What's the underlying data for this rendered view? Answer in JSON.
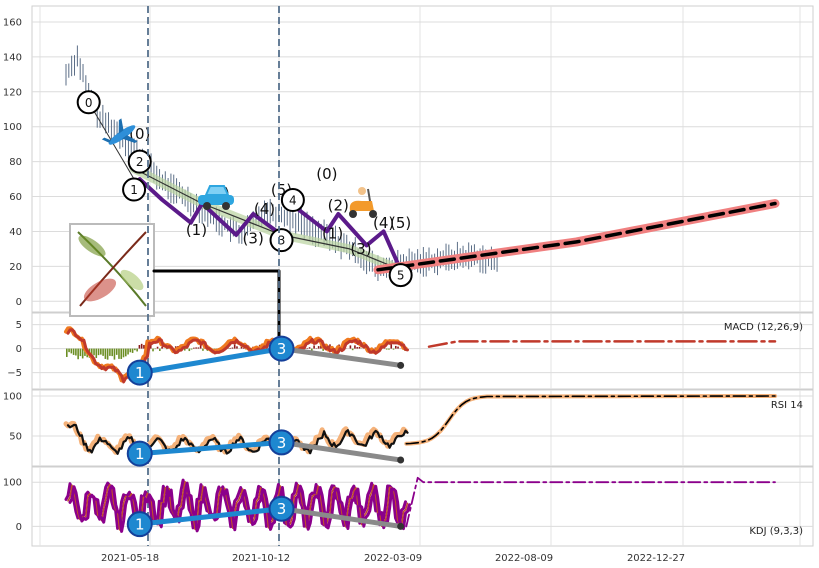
{
  "chart_data": [
    {
      "type": "line",
      "panel": "price",
      "ylim": [
        -5,
        168
      ],
      "y_ticks": [
        "0",
        "20",
        "40",
        "60",
        "80",
        "100",
        "120",
        "140",
        "160"
      ],
      "y_tick_values": [
        0,
        20,
        40,
        60,
        80,
        100,
        120,
        140,
        160
      ],
      "x_ticks": [
        "2021-05-18",
        "2021-10-12",
        "2022-03-09",
        "2022-08-09",
        "2022-12-27"
      ],
      "price_path": [
        [
          0,
          130
        ],
        [
          2,
          140
        ],
        [
          4,
          118
        ],
        [
          6,
          105
        ],
        [
          8,
          100
        ],
        [
          11,
          90
        ],
        [
          14,
          80
        ],
        [
          17,
          68
        ],
        [
          20,
          62
        ],
        [
          23,
          55
        ],
        [
          26,
          48
        ],
        [
          29,
          42
        ],
        [
          31,
          38
        ],
        [
          33,
          45
        ],
        [
          35,
          52
        ],
        [
          38,
          50
        ],
        [
          41,
          46
        ],
        [
          44,
          40
        ],
        [
          47,
          36
        ],
        [
          50,
          30
        ],
        [
          53,
          24
        ],
        [
          55,
          18
        ],
        [
          57,
          20
        ],
        [
          60,
          22
        ],
        [
          64,
          23
        ],
        [
          68,
          25
        ],
        [
          72,
          26
        ],
        [
          74,
          24
        ],
        [
          76,
          22
        ]
      ],
      "projection_line": [
        [
          55,
          18
        ],
        [
          90,
          34
        ],
        [
          125,
          56
        ]
      ],
      "wave_labels": [
        {
          "text": "0",
          "x": 4,
          "y": 114,
          "circled": true
        },
        {
          "text": "(0)",
          "x": 13,
          "y": 93,
          "circled": false
        },
        {
          "text": "2",
          "x": 13,
          "y": 80,
          "circled": true
        },
        {
          "text": "1",
          "x": 12,
          "y": 64,
          "circled": true
        },
        {
          "text": "(1)",
          "x": 23,
          "y": 38,
          "circled": false
        },
        {
          "text": "(2)",
          "x": 27,
          "y": 59,
          "circled": false
        },
        {
          "text": "(3)",
          "x": 33,
          "y": 33,
          "circled": false
        },
        {
          "text": "(4)",
          "x": 35,
          "y": 50,
          "circled": false
        },
        {
          "text": "3",
          "x": 38,
          "y": 35,
          "circled": true
        },
        {
          "text": "(5)",
          "x": 38,
          "y": 61,
          "circled": false
        },
        {
          "text": "4",
          "x": 40,
          "y": 58,
          "circled": true
        },
        {
          "text": "(0)",
          "x": 46,
          "y": 70,
          "circled": false
        },
        {
          "text": "(1)",
          "x": 47,
          "y": 36,
          "circled": false
        },
        {
          "text": "(2)",
          "x": 48,
          "y": 52,
          "circled": false
        },
        {
          "text": "(3)",
          "x": 52,
          "y": 27,
          "circled": false
        },
        {
          "text": "(4)",
          "x": 56,
          "y": 42,
          "circled": false
        },
        {
          "text": "(5)",
          "x": 59,
          "y": 42,
          "circled": false
        },
        {
          "text": "5",
          "x": 59,
          "y": 15,
          "circled": true
        }
      ]
    },
    {
      "type": "line",
      "panel": "macd",
      "title": "MACD (12,26,9)",
      "y_ticks": [
        "5",
        "0",
        "−5"
      ],
      "y_tick_values": [
        5,
        0,
        -5
      ],
      "ylim": [
        -8,
        7
      ],
      "divergence_points": [
        {
          "label": "1",
          "x": 13,
          "y": -5
        },
        {
          "label": "3",
          "x": 38,
          "y": 0
        }
      ],
      "flat_value": 1.5
    },
    {
      "type": "line",
      "panel": "rsi",
      "title": "RSI 14",
      "y_ticks": [
        "100",
        "50"
      ],
      "y_tick_values": [
        100,
        50
      ],
      "ylim": [
        15,
        105
      ],
      "divergence_points": [
        {
          "label": "1",
          "x": 13,
          "y": 28
        },
        {
          "label": "3",
          "x": 38,
          "y": 42
        }
      ],
      "flat_value": 100
    },
    {
      "type": "line",
      "panel": "kdj",
      "title": "KDJ (9,3,3)",
      "y_ticks": [
        "100",
        "0"
      ],
      "y_tick_values": [
        100,
        0
      ],
      "ylim": [
        -40,
        130
      ],
      "divergence_points": [
        {
          "label": "1",
          "x": 13,
          "y": 5
        },
        {
          "label": "3",
          "x": 38,
          "y": 40
        }
      ],
      "flat_value": 100
    }
  ],
  "colors": {
    "grid": "#cfcfcf",
    "price": "#4a5f7a",
    "projection": "#f08080",
    "purple": "#5b1a8a",
    "green_band": "#b9d3a0",
    "macd_orange": "#f07a20",
    "macd_red": "#c0392b",
    "rsi_black": "#111111",
    "rsi_halo": "#f5b27a",
    "kdj_purple": "#8b008b",
    "blue": "#1e88d0",
    "gray": "#8a8a8a",
    "vline": "#56708c"
  },
  "icons": [
    "airplane-icon",
    "car-icon",
    "scooter-icon",
    "plant-thumbnail"
  ]
}
